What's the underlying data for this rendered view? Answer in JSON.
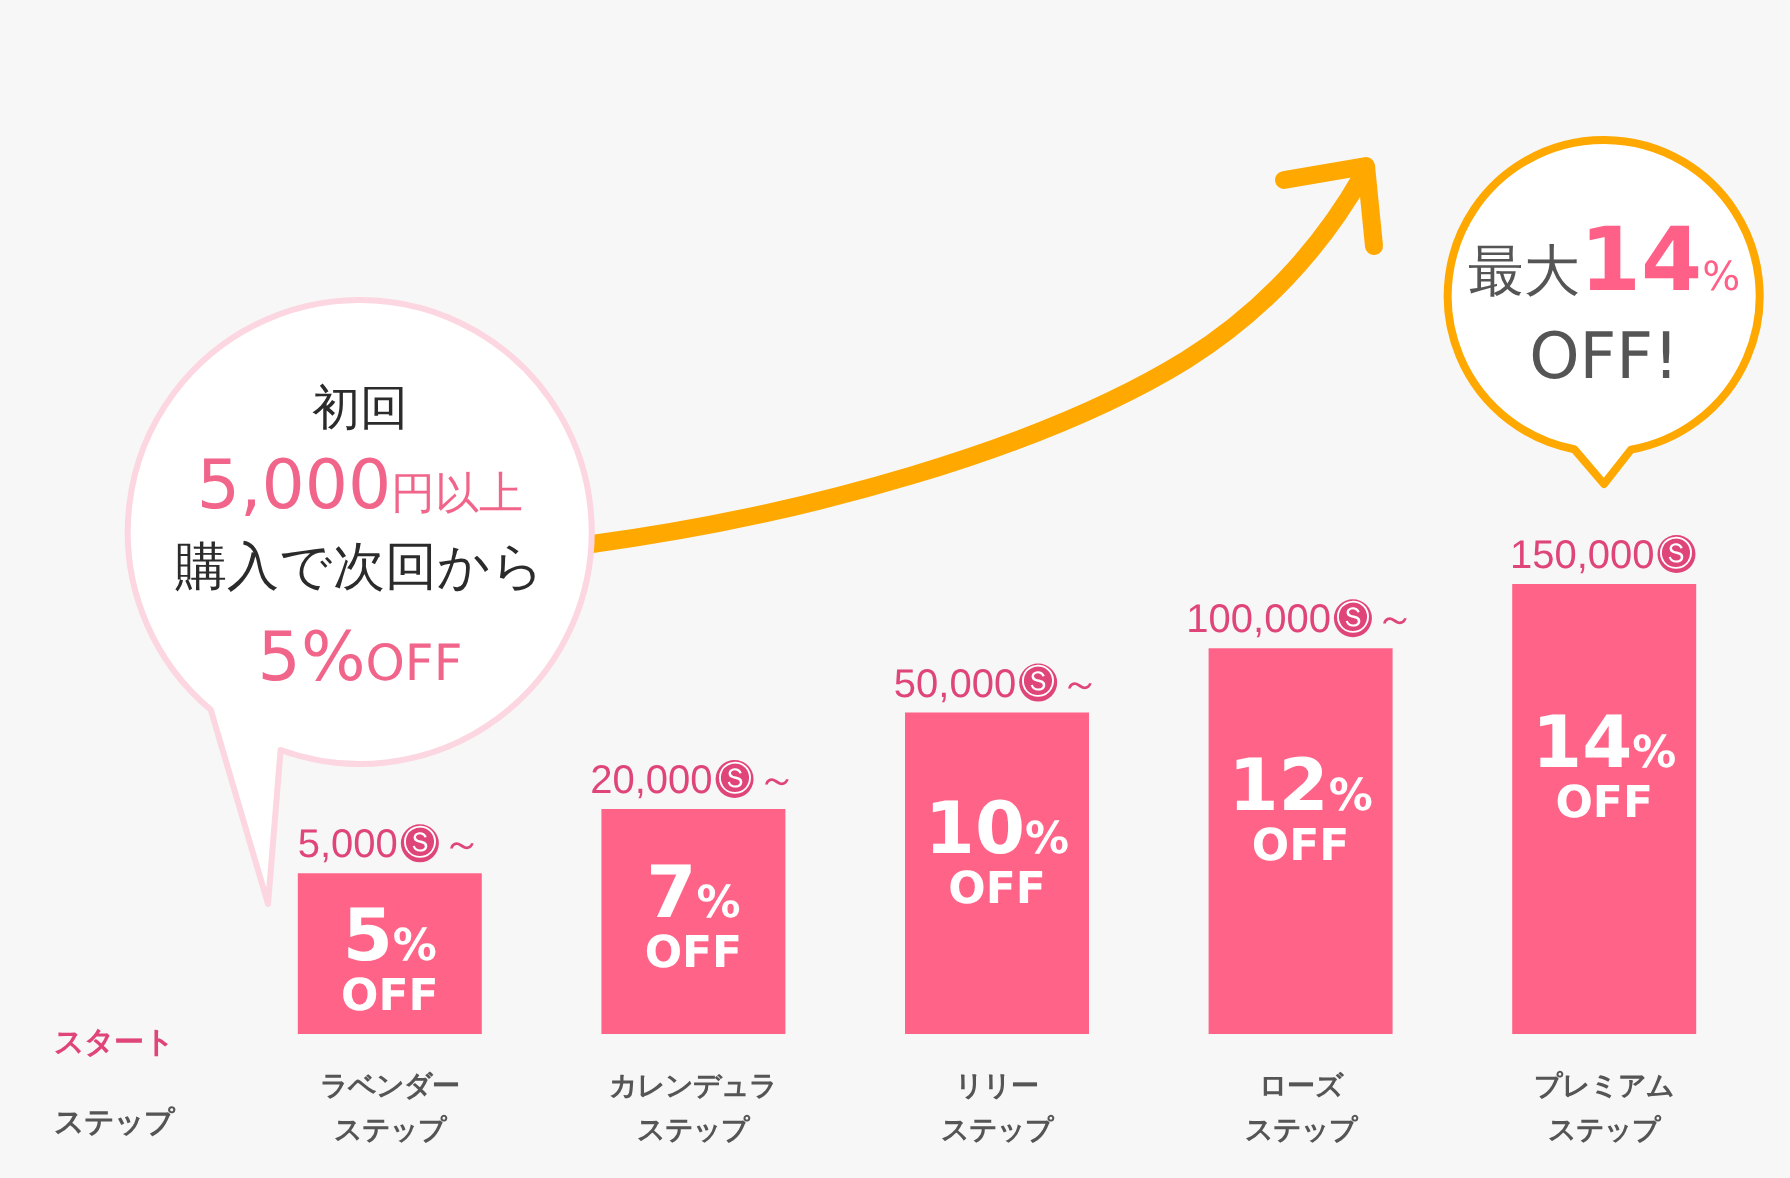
{
  "chart_data": {
    "type": "bar",
    "categories": [
      "ラベンダーステップ",
      "カレンデュラステップ",
      "リリーステップ",
      "ローズステップ",
      "プレミアムステップ"
    ],
    "values": [
      5,
      7,
      10,
      12,
      14
    ],
    "color": "#ff6488",
    "value_labels": [
      "5%\nOFF",
      "7%\nOFF",
      "10%\nOFF",
      "12%\nOFF",
      "14%\nOFF"
    ],
    "tick_labels": "x",
    "xlabel": "ステップ",
    "annotations": [
      "初回",
      "5,000円以上",
      "購入で次回から",
      "5%OFF",
      "最大14%\nOFF!",
      "スタート",
      {
        "text": "5,000Ⓢ～",
        "x": "ラベンダーステップ",
        "y": 5
      },
      {
        "text": "20,000Ⓢ～",
        "x": "カレンデュラステップ",
        "y": 7
      },
      {
        "text": "50,000Ⓢ～",
        "x": "リリーステップ",
        "y": 10
      },
      {
        "text": "100,000Ⓢ～",
        "x": "ローズステップ",
        "y": 12
      },
      {
        "text": "150,000Ⓢ",
        "x": "プレミアムステップ",
        "y": 14
      }
    ]
  }
}
